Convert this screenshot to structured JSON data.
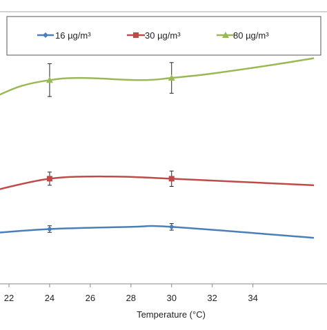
{
  "chart_data": {
    "type": "line",
    "title": "",
    "xlabel": "Temperature (°C)",
    "ylabel": "",
    "xlim": [
      21,
      37
    ],
    "ylim": [
      0,
      100
    ],
    "x_ticks": [
      "22",
      "24",
      "26",
      "28",
      "30",
      "32",
      "34"
    ],
    "grid": false,
    "legend_position": "top",
    "series": [
      {
        "name": "16 µg/m³",
        "color": "#4a7ebb",
        "marker": "diamond",
        "x": [
          21,
          24,
          28,
          30,
          37
        ],
        "y": [
          23,
          25,
          26,
          26,
          21
        ],
        "error_x": [
          24,
          30
        ],
        "error_y": [
          25,
          26
        ],
        "error_minus": [
          1.5,
          1.5
        ],
        "error_plus": [
          1.5,
          1.5
        ]
      },
      {
        "name": "30 µg/m³",
        "color": "#be4b48",
        "marker": "square",
        "x": [
          21,
          24,
          27,
          30,
          37
        ],
        "y": [
          42,
          48,
          49,
          48,
          45
        ],
        "error_x": [
          24,
          30
        ],
        "error_y": [
          48,
          48
        ],
        "error_minus": [
          3,
          3.5
        ],
        "error_plus": [
          3,
          3.5
        ]
      },
      {
        "name": "80 µg/m³",
        "color": "#98b954",
        "marker": "triangle",
        "x": [
          21,
          22.5,
          24,
          25.5,
          28.5,
          30,
          32,
          35,
          37
        ],
        "y": [
          84,
          90,
          93,
          94,
          93,
          94,
          96,
          100,
          103
        ],
        "error_x": [
          24,
          30
        ],
        "error_y": [
          93,
          94
        ],
        "error_minus": [
          7.5,
          7
        ],
        "error_plus": [
          7.5,
          7
        ]
      }
    ]
  }
}
